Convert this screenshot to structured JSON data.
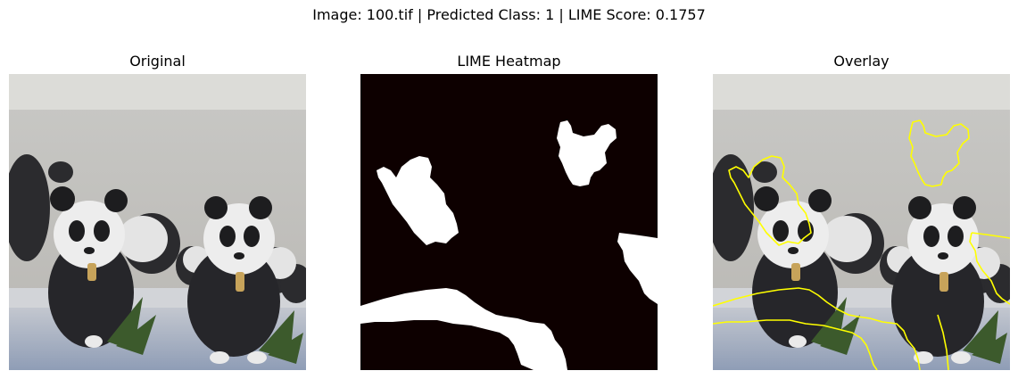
{
  "figure": {
    "suptitle": "Image: 100.tif | Predicted Class: 1 | LIME Score: 0.1757"
  },
  "panels": [
    {
      "title": "Original"
    },
    {
      "title": "LIME Heatmap"
    },
    {
      "title": "Overlay"
    }
  ],
  "colors": {
    "heatmap_background": "#0d0000",
    "heatmap_highlight": "#ffffff",
    "overlay_boundary": "#ffff00"
  }
}
